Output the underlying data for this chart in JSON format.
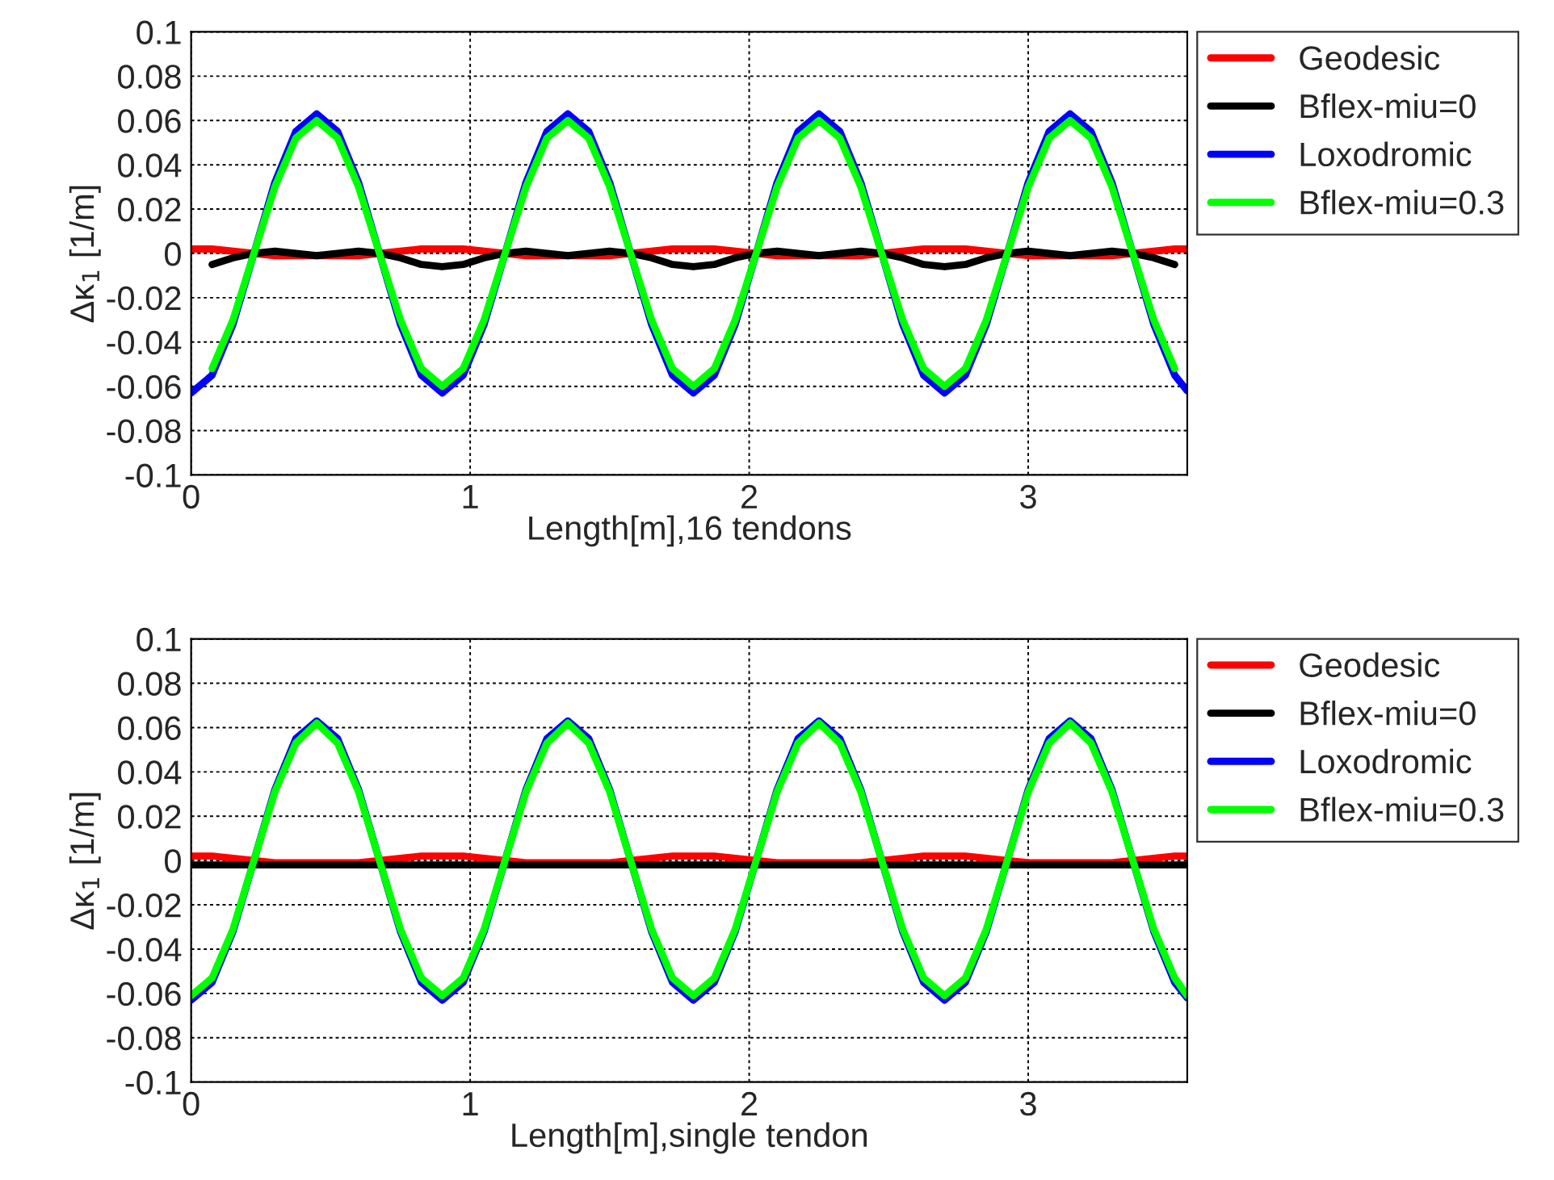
{
  "chart_data": [
    {
      "type": "line",
      "xlabel": "Length[m],16 tendons",
      "ylabel": "Δκ$_{1}$ [1/m]",
      "xlim": [
        0,
        3.57
      ],
      "ylim": [
        -0.1,
        0.1
      ],
      "xticks": [
        0,
        1,
        2,
        3
      ],
      "yticks": [
        -0.1,
        -0.08,
        -0.06,
        -0.04,
        -0.02,
        0,
        0.02,
        0.04,
        0.06,
        0.08,
        0.1
      ],
      "grid": true,
      "legend": "right",
      "marker": "none",
      "line_style": "solid",
      "x": [
        0,
        0.075,
        0.15,
        0.225,
        0.3,
        0.375,
        0.45,
        0.525,
        0.6,
        0.675,
        0.75,
        0.825,
        0.9,
        0.975,
        1.05,
        1.125,
        1.2,
        1.275,
        1.35,
        1.425,
        1.5,
        1.575,
        1.65,
        1.725,
        1.8,
        1.875,
        1.95,
        2.025,
        2.1,
        2.175,
        2.25,
        2.325,
        2.4,
        2.475,
        2.55,
        2.625,
        2.7,
        2.775,
        2.85,
        2.925,
        3.0,
        3.075,
        3.15,
        3.225,
        3.3,
        3.375,
        3.45,
        3.525,
        3.57
      ],
      "series": [
        {
          "name": "Geodesic",
          "color": "#ff0000",
          "values": [
            0.002,
            0.002,
            0.001,
            0,
            -0.001,
            -0.001,
            -0.001,
            -0.001,
            -0.001,
            0,
            0.001,
            0.002,
            0.002,
            0.002,
            0.001,
            0,
            -0.001,
            -0.001,
            -0.001,
            -0.001,
            -0.001,
            0,
            0.001,
            0.002,
            0.002,
            0.002,
            0.001,
            0,
            -0.001,
            -0.001,
            -0.001,
            -0.001,
            -0.001,
            0,
            0.001,
            0.002,
            0.002,
            0.002,
            0.001,
            0,
            -0.001,
            -0.001,
            -0.001,
            -0.001,
            -0.001,
            0,
            0.001,
            0.002,
            0.002
          ]
        },
        {
          "name": "Bflex-miu=0",
          "color": "#000000",
          "x": [
            0.075,
            0.15,
            0.225,
            0.3,
            0.375,
            0.45,
            0.525,
            0.6,
            0.675,
            0.75,
            0.825,
            0.9,
            0.975,
            1.05,
            1.125,
            1.2,
            1.275,
            1.35,
            1.425,
            1.5,
            1.575,
            1.65,
            1.725,
            1.8,
            1.875,
            1.95,
            2.025,
            2.1,
            2.175,
            2.25,
            2.325,
            2.4,
            2.475,
            2.55,
            2.625,
            2.7,
            2.775,
            2.85,
            2.925,
            3.0,
            3.075,
            3.15,
            3.225,
            3.3,
            3.375,
            3.45,
            3.525
          ],
          "values": [
            -0.005,
            -0.002,
            0,
            0.001,
            0,
            -0.001,
            0,
            0.001,
            0,
            -0.002,
            -0.005,
            -0.006,
            -0.005,
            -0.002,
            0,
            0.001,
            0,
            -0.001,
            0,
            0.001,
            0,
            -0.002,
            -0.005,
            -0.006,
            -0.005,
            -0.002,
            0,
            0.001,
            0,
            -0.001,
            0,
            0.001,
            0,
            -0.002,
            -0.005,
            -0.006,
            -0.005,
            -0.002,
            0,
            0.001,
            0,
            -0.001,
            0,
            0.001,
            0,
            -0.002,
            -0.005
          ]
        },
        {
          "name": "Loxodromic",
          "color": "#0000ff",
          "values": [
            -0.063,
            -0.055,
            -0.032,
            0,
            0.032,
            0.055,
            0.063,
            0.055,
            0.032,
            0,
            -0.032,
            -0.055,
            -0.063,
            -0.055,
            -0.032,
            0,
            0.032,
            0.055,
            0.063,
            0.055,
            0.032,
            0,
            -0.032,
            -0.055,
            -0.063,
            -0.055,
            -0.032,
            0,
            0.032,
            0.055,
            0.063,
            0.055,
            0.032,
            0,
            -0.032,
            -0.055,
            -0.063,
            -0.055,
            -0.032,
            0,
            0.032,
            0.055,
            0.063,
            0.055,
            0.032,
            0,
            -0.032,
            -0.055,
            -0.062
          ]
        },
        {
          "name": "Bflex-miu=0.3",
          "color": "#00ff00",
          "x": [
            0.075,
            0.15,
            0.225,
            0.3,
            0.375,
            0.45,
            0.525,
            0.6,
            0.675,
            0.75,
            0.825,
            0.9,
            0.975,
            1.05,
            1.125,
            1.2,
            1.275,
            1.35,
            1.425,
            1.5,
            1.575,
            1.65,
            1.725,
            1.8,
            1.875,
            1.95,
            2.025,
            2.1,
            2.175,
            2.25,
            2.325,
            2.4,
            2.475,
            2.55,
            2.625,
            2.7,
            2.775,
            2.85,
            2.925,
            3.0,
            3.075,
            3.15,
            3.225,
            3.3,
            3.375,
            3.45,
            3.525
          ],
          "values": [
            -0.052,
            -0.03,
            0,
            0.03,
            0.052,
            0.06,
            0.052,
            0.03,
            0,
            -0.03,
            -0.052,
            -0.06,
            -0.052,
            -0.03,
            0,
            0.03,
            0.052,
            0.06,
            0.052,
            0.03,
            0,
            -0.03,
            -0.052,
            -0.06,
            -0.052,
            -0.03,
            0,
            0.03,
            0.052,
            0.06,
            0.052,
            0.03,
            0,
            -0.03,
            -0.052,
            -0.06,
            -0.052,
            -0.03,
            0,
            0.03,
            0.052,
            0.06,
            0.052,
            0.03,
            0,
            -0.03,
            -0.052
          ]
        }
      ]
    },
    {
      "type": "line",
      "xlabel": "Length[m],single tendon",
      "ylabel": "Δκ$_{1}$ [1/m]",
      "xlim": [
        0,
        3.57
      ],
      "ylim": [
        -0.1,
        0.1
      ],
      "xticks": [
        0,
        1,
        2,
        3
      ],
      "yticks": [
        -0.1,
        -0.08,
        -0.06,
        -0.04,
        -0.02,
        0,
        0.02,
        0.04,
        0.06,
        0.08,
        0.1
      ],
      "grid": true,
      "legend": "right",
      "marker": "none",
      "line_style": "solid",
      "x": [
        0,
        0.075,
        0.15,
        0.225,
        0.3,
        0.375,
        0.45,
        0.525,
        0.6,
        0.675,
        0.75,
        0.825,
        0.9,
        0.975,
        1.05,
        1.125,
        1.2,
        1.275,
        1.35,
        1.425,
        1.5,
        1.575,
        1.65,
        1.725,
        1.8,
        1.875,
        1.95,
        2.025,
        2.1,
        2.175,
        2.25,
        2.325,
        2.4,
        2.475,
        2.55,
        2.625,
        2.7,
        2.775,
        2.85,
        2.925,
        3.0,
        3.075,
        3.15,
        3.225,
        3.3,
        3.375,
        3.45,
        3.525,
        3.57
      ],
      "series": [
        {
          "name": "Geodesic",
          "color": "#ff0000",
          "values": [
            0.002,
            0.002,
            0.001,
            0,
            -0.001,
            -0.001,
            -0.001,
            -0.001,
            -0.001,
            0,
            0.001,
            0.002,
            0.002,
            0.002,
            0.001,
            0,
            -0.001,
            -0.001,
            -0.001,
            -0.001,
            -0.001,
            0,
            0.001,
            0.002,
            0.002,
            0.002,
            0.001,
            0,
            -0.001,
            -0.001,
            -0.001,
            -0.001,
            -0.001,
            0,
            0.001,
            0.002,
            0.002,
            0.002,
            0.001,
            0,
            -0.001,
            -0.001,
            -0.001,
            -0.001,
            -0.001,
            0,
            0.001,
            0.002,
            0.002
          ]
        },
        {
          "name": "Bflex-miu=0",
          "color": "#000000",
          "x": [
            0,
            3.57
          ],
          "values": [
            -0.002,
            -0.002
          ]
        },
        {
          "name": "Loxodromic",
          "color": "#0000ff",
          "values": [
            -0.063,
            -0.055,
            -0.032,
            0,
            0.032,
            0.055,
            0.063,
            0.055,
            0.032,
            0,
            -0.032,
            -0.055,
            -0.063,
            -0.055,
            -0.032,
            0,
            0.032,
            0.055,
            0.063,
            0.055,
            0.032,
            0,
            -0.032,
            -0.055,
            -0.063,
            -0.055,
            -0.032,
            0,
            0.032,
            0.055,
            0.063,
            0.055,
            0.032,
            0,
            -0.032,
            -0.055,
            -0.063,
            -0.055,
            -0.032,
            0,
            0.032,
            0.055,
            0.063,
            0.055,
            0.032,
            0,
            -0.032,
            -0.055,
            -0.062
          ]
        },
        {
          "name": "Bflex-miu=0.3",
          "color": "#00ff00",
          "values": [
            -0.061,
            -0.053,
            -0.031,
            0,
            0.031,
            0.053,
            0.062,
            0.053,
            0.031,
            0,
            -0.031,
            -0.053,
            -0.061,
            -0.053,
            -0.031,
            0,
            0.031,
            0.053,
            0.062,
            0.053,
            0.031,
            0,
            -0.031,
            -0.053,
            -0.061,
            -0.053,
            -0.031,
            0,
            0.031,
            0.053,
            0.062,
            0.053,
            0.031,
            0,
            -0.031,
            -0.053,
            -0.061,
            -0.053,
            -0.031,
            0,
            0.031,
            0.053,
            0.062,
            0.053,
            0.031,
            0,
            -0.031,
            -0.053,
            -0.061
          ]
        }
      ]
    }
  ]
}
